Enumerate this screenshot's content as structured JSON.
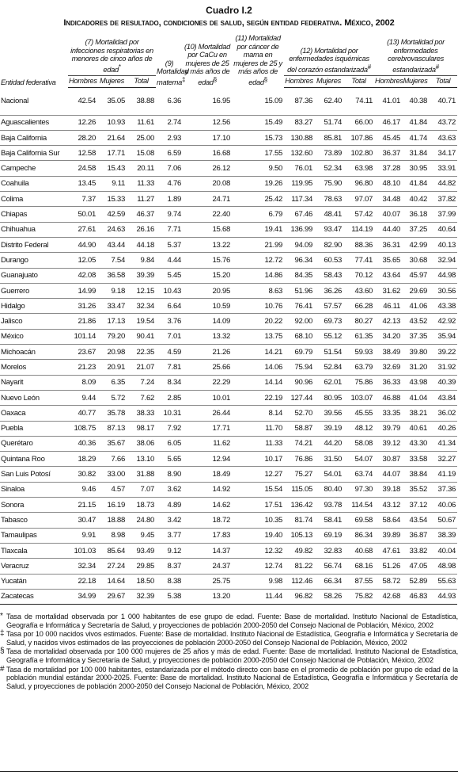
{
  "header": {
    "title": "Cuadro I.2",
    "subtitle": "Indicadores de resultado, condiciones de salud, según entidad federativa. México, 2002"
  },
  "table": {
    "entity_header": "Entidad federativa",
    "groups": [
      {
        "label": "(7) Mortalidad por infecciones respiratorias en menores de cinco años de edad",
        "mark": "*",
        "subs": [
          "Hombres",
          "Mujeres",
          "Total"
        ]
      },
      {
        "label": "(9) Mortalidad materna",
        "mark": "‡"
      },
      {
        "label": "(10) Mortalidad por CaCu en mujeres de 25 y más años de edad",
        "mark": "§"
      },
      {
        "label": "(11) Mortalidad por cáncer de mama en mujeres de 25 y más años de edad",
        "mark": "§"
      },
      {
        "label": "(12) Mortalidad por enfermedades isquémicas del corazón estandarizada",
        "mark": "#",
        "subs": [
          "Hombres",
          "Mujeres",
          "Total"
        ]
      },
      {
        "label": "(13) Mortalidad por enfermedades cerebrovasculares estandarizada",
        "mark": "#",
        "subs": [
          "Hombres",
          "Mujeres",
          "Total"
        ]
      }
    ],
    "rows": [
      [
        "Nacional",
        "42.54",
        "35.05",
        "38.88",
        "6.36",
        "16.95",
        "15.09",
        "87.36",
        "62.40",
        "74.11",
        "41.01",
        "40.38",
        "40.71"
      ],
      [
        "Aguascalientes",
        "12.26",
        "10.93",
        "11.61",
        "2.74",
        "12.56",
        "15.49",
        "83.27",
        "51.74",
        "66.00",
        "46.17",
        "41.84",
        "43.72"
      ],
      [
        "Baja California",
        "28.20",
        "21.64",
        "25.00",
        "2.93",
        "17.10",
        "15.73",
        "130.88",
        "85.81",
        "107.86",
        "45.45",
        "41.74",
        "43.63"
      ],
      [
        "Baja California Sur",
        "12.58",
        "17.71",
        "15.08",
        "6.59",
        "16.68",
        "17.55",
        "132.60",
        "73.89",
        "102.80",
        "36.37",
        "31.84",
        "34.17"
      ],
      [
        "Campeche",
        "24.58",
        "15.43",
        "20.11",
        "7.06",
        "26.12",
        "9.50",
        "76.01",
        "52.34",
        "63.98",
        "37.28",
        "30.95",
        "33.91"
      ],
      [
        "Coahuila",
        "13.45",
        "9.11",
        "11.33",
        "4.76",
        "20.08",
        "19.26",
        "119.95",
        "75.90",
        "96.80",
        "48.10",
        "41.84",
        "44.82"
      ],
      [
        "Colima",
        "7.37",
        "15.33",
        "11.27",
        "1.89",
        "24.71",
        "25.42",
        "117.34",
        "78.63",
        "97.07",
        "34.48",
        "40.42",
        "37.82"
      ],
      [
        "Chiapas",
        "50.01",
        "42.59",
        "46.37",
        "9.74",
        "22.40",
        "6.79",
        "67.46",
        "48.41",
        "57.42",
        "40.07",
        "36.18",
        "37.99"
      ],
      [
        "Chihuahua",
        "27.61",
        "24.63",
        "26.16",
        "7.71",
        "15.68",
        "19.41",
        "136.99",
        "93.47",
        "114.19",
        "44.40",
        "37.25",
        "40.64"
      ],
      [
        "Distrito Federal",
        "44.90",
        "43.44",
        "44.18",
        "5.37",
        "13.22",
        "21.99",
        "94.09",
        "82.90",
        "88.36",
        "36.31",
        "42.99",
        "40.13"
      ],
      [
        "Durango",
        "12.05",
        "7.54",
        "9.84",
        "4.44",
        "15.76",
        "12.72",
        "96.34",
        "60.53",
        "77.41",
        "35.65",
        "30.68",
        "32.94"
      ],
      [
        "Guanajuato",
        "42.08",
        "36.58",
        "39.39",
        "5.45",
        "15.20",
        "14.86",
        "84.35",
        "58.43",
        "70.12",
        "43.64",
        "45.97",
        "44.98"
      ],
      [
        "Guerrero",
        "14.99",
        "9.18",
        "12.15",
        "10.43",
        "20.95",
        "8.63",
        "51.96",
        "36.26",
        "43.60",
        "31.62",
        "29.69",
        "30.56"
      ],
      [
        "Hidalgo",
        "31.26",
        "33.47",
        "32.34",
        "6.64",
        "10.59",
        "10.76",
        "76.41",
        "57.57",
        "66.28",
        "46.11",
        "41.06",
        "43.38"
      ],
      [
        "Jalisco",
        "21.86",
        "17.13",
        "19.54",
        "3.76",
        "14.09",
        "20.22",
        "92.00",
        "69.73",
        "80.27",
        "42.13",
        "43.52",
        "42.92"
      ],
      [
        "México",
        "101.14",
        "79.20",
        "90.41",
        "7.01",
        "13.32",
        "13.75",
        "68.10",
        "55.12",
        "61.35",
        "34.20",
        "37.35",
        "35.94"
      ],
      [
        "Michoacán",
        "23.67",
        "20.98",
        "22.35",
        "4.59",
        "21.26",
        "14.21",
        "69.79",
        "51.54",
        "59.93",
        "38.49",
        "39.80",
        "39.22"
      ],
      [
        "Morelos",
        "21.23",
        "20.91",
        "21.07",
        "7.81",
        "25.66",
        "14.06",
        "75.94",
        "52.84",
        "63.79",
        "32.69",
        "31.20",
        "31.92"
      ],
      [
        "Nayarit",
        "8.09",
        "6.35",
        "7.24",
        "8.34",
        "22.29",
        "14.14",
        "90.96",
        "62.01",
        "75.86",
        "36.33",
        "43.98",
        "40.39"
      ],
      [
        "Nuevo León",
        "9.44",
        "5.72",
        "7.62",
        "2.85",
        "10.01",
        "22.19",
        "127.44",
        "80.95",
        "103.07",
        "46.88",
        "41.04",
        "43.84"
      ],
      [
        "Oaxaca",
        "40.77",
        "35.78",
        "38.33",
        "10.31",
        "26.44",
        "8.14",
        "52.70",
        "39.56",
        "45.55",
        "33.35",
        "38.21",
        "36.02"
      ],
      [
        "Puebla",
        "108.75",
        "87.13",
        "98.17",
        "7.92",
        "17.71",
        "11.70",
        "58.87",
        "39.19",
        "48.12",
        "39.79",
        "40.61",
        "40.26"
      ],
      [
        "Querétaro",
        "40.36",
        "35.67",
        "38.06",
        "6.05",
        "11.62",
        "11.33",
        "74.21",
        "44.20",
        "58.08",
        "39.12",
        "43.30",
        "41.34"
      ],
      [
        "Quintana Roo",
        "18.29",
        "7.66",
        "13.10",
        "5.65",
        "12.94",
        "10.17",
        "76.86",
        "31.50",
        "54.07",
        "30.87",
        "33.58",
        "32.27"
      ],
      [
        "San Luis Potosí",
        "30.82",
        "33.00",
        "31.88",
        "8.90",
        "18.49",
        "12.27",
        "75.27",
        "54.01",
        "63.74",
        "44.07",
        "38.84",
        "41.19"
      ],
      [
        "Sinaloa",
        "9.46",
        "4.57",
        "7.07",
        "3.62",
        "14.92",
        "15.54",
        "115.05",
        "80.40",
        "97.30",
        "39.18",
        "35.52",
        "37.36"
      ],
      [
        "Sonora",
        "21.15",
        "16.19",
        "18.73",
        "4.89",
        "14.62",
        "17.51",
        "136.42",
        "93.78",
        "114.54",
        "43.12",
        "37.12",
        "40.06"
      ],
      [
        "Tabasco",
        "30.47",
        "18.88",
        "24.80",
        "3.42",
        "18.72",
        "10.35",
        "81.74",
        "58.41",
        "69.58",
        "58.64",
        "43.54",
        "50.67"
      ],
      [
        "Tamaulipas",
        "9.91",
        "8.98",
        "9.45",
        "3.77",
        "17.83",
        "19.40",
        "105.13",
        "69.19",
        "86.34",
        "39.89",
        "36.87",
        "38.39"
      ],
      [
        "Tlaxcala",
        "101.03",
        "85.64",
        "93.49",
        "9.12",
        "14.37",
        "12.32",
        "49.82",
        "32.83",
        "40.68",
        "47.61",
        "33.82",
        "40.04"
      ],
      [
        "Veracruz",
        "32.34",
        "27.24",
        "29.85",
        "8.37",
        "24.37",
        "12.74",
        "81.22",
        "56.74",
        "68.16",
        "51.26",
        "47.05",
        "48.98"
      ],
      [
        "Yucatán",
        "22.18",
        "14.64",
        "18.50",
        "8.38",
        "25.75",
        "9.98",
        "112.46",
        "66.34",
        "87.55",
        "58.72",
        "52.89",
        "55.63"
      ],
      [
        "Zacatecas",
        "34.99",
        "29.67",
        "32.39",
        "5.38",
        "13.20",
        "11.44",
        "96.82",
        "58.26",
        "75.82",
        "42.68",
        "46.83",
        "44.93"
      ]
    ]
  },
  "footnotes": [
    {
      "mark": "*",
      "text": "Tasa de mortalidad observada por 1 000 habitantes de ese grupo de edad. Fuente: Base de mortalidad. Instituto Nacional de Estadística, Geografía e Informática y Secretaría de Salud, y proyecciones de población 2000-2050 del Consejo Nacional de Población, México, 2002"
    },
    {
      "mark": "‡",
      "text": "Tasa por 10 000 nacidos vivos estimados. Fuente: Base de mortalidad. Instituto Nacional de Estadística, Geografía e Informática y Secretaría de Salud, y nacidos vivos estimados de las proyecciones de población 2000-2050 del Consejo Nacional de Población, México, 2002"
    },
    {
      "mark": "§",
      "text": "Tasa de mortalidad observada por 100 000 mujeres de 25 años y más de edad. Fuente: Base de mortalidad. Instituto Nacional de Estadística, Geografía e Informática y Secretaría de Salud, y proyecciones de población 2000-2050 del Consejo Nacional de Población, México, 2002"
    },
    {
      "mark": "#",
      "text": "Tasa de mortalidad por 100 000 habitantes, estandarizada por el método directo con base en el promedio de población por grupo de edad de la población mundial estándar 2000-2025. Fuente: Base de mortalidad. Instituto Nacional de Estadística, Geografía e Informática y Secretaría de Salud, y proyecciones de población 2000-2050 del Consejo Nacional de Población, México, 2002"
    }
  ]
}
